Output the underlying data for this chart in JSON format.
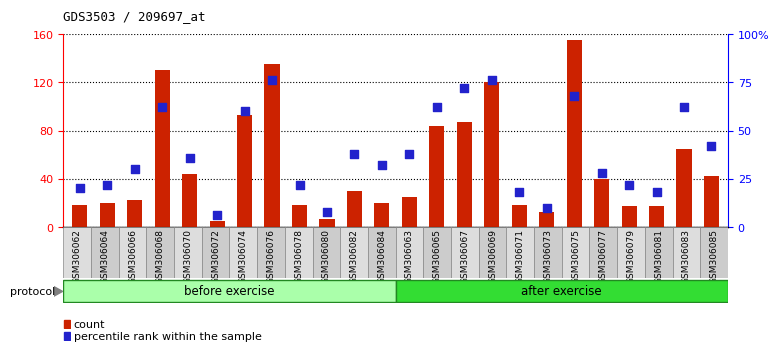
{
  "title": "GDS3503 / 209697_at",
  "categories": [
    "GSM306062",
    "GSM306064",
    "GSM306066",
    "GSM306068",
    "GSM306070",
    "GSM306072",
    "GSM306074",
    "GSM306076",
    "GSM306078",
    "GSM306080",
    "GSM306082",
    "GSM306084",
    "GSM306063",
    "GSM306065",
    "GSM306067",
    "GSM306069",
    "GSM306071",
    "GSM306073",
    "GSM306075",
    "GSM306077",
    "GSM306079",
    "GSM306081",
    "GSM306083",
    "GSM306085"
  ],
  "count_values": [
    18,
    20,
    22,
    130,
    44,
    5,
    93,
    135,
    18,
    7,
    30,
    20,
    25,
    84,
    87,
    120,
    18,
    12,
    155,
    40,
    17,
    17,
    65,
    42
  ],
  "percentile_values": [
    20,
    22,
    30,
    62,
    36,
    6,
    60,
    76,
    22,
    8,
    38,
    32,
    38,
    62,
    72,
    76,
    18,
    10,
    68,
    28,
    22,
    18,
    62,
    42
  ],
  "before_exercise_count": 12,
  "after_exercise_count": 12,
  "before_label": "before exercise",
  "after_label": "after exercise",
  "protocol_label": "protocol",
  "count_label": "count",
  "percentile_label": "percentile rank within the sample",
  "left_ylim": [
    0,
    160
  ],
  "right_ylim": [
    0,
    100
  ],
  "left_yticks": [
    0,
    40,
    80,
    120,
    160
  ],
  "right_yticks": [
    0,
    25,
    50,
    75,
    100
  ],
  "right_yticklabels": [
    "0",
    "25",
    "50",
    "75",
    "100%"
  ],
  "bar_color": "#cc2200",
  "percentile_color": "#2222cc",
  "before_bg": "#aaffaa",
  "after_bg": "#33dd33",
  "axis_bg": "#ffffff",
  "label_bg_even": "#dddddd",
  "label_bg_odd": "#cccccc"
}
